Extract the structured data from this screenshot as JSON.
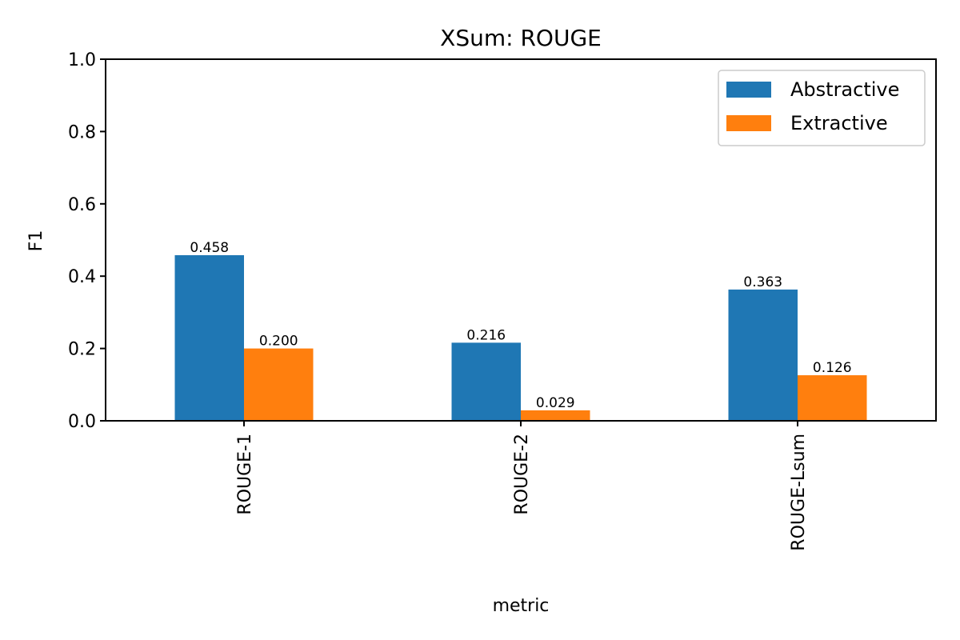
{
  "chart_data": {
    "type": "bar",
    "title": "XSum: ROUGE",
    "xlabel": "metric",
    "ylabel": "F1",
    "ylim": [
      0,
      1
    ],
    "yticks": [
      "0.0",
      "0.2",
      "0.4",
      "0.6",
      "0.8",
      "1.0"
    ],
    "categories": [
      "ROUGE-1",
      "ROUGE-2",
      "ROUGE-Lsum"
    ],
    "series": [
      {
        "name": "Abstractive",
        "color": "#1f77b4",
        "values": [
          0.458,
          0.216,
          0.363
        ],
        "labels": [
          "0.458",
          "0.216",
          "0.363"
        ]
      },
      {
        "name": "Extractive",
        "color": "#ff7f0e",
        "values": [
          0.2,
          0.029,
          0.126
        ],
        "labels": [
          "0.200",
          "0.029",
          "0.126"
        ]
      }
    ],
    "legend": "top-right",
    "grid": false
  }
}
